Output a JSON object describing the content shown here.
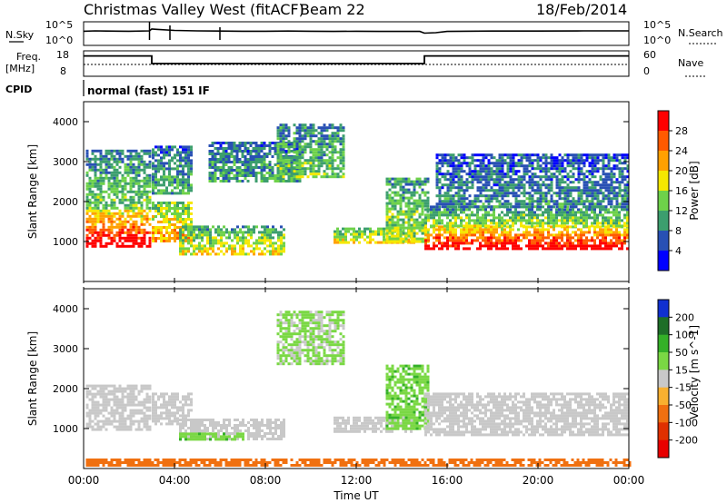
{
  "header": {
    "station": "Christmas Valley West (fitACF)",
    "beam": "Beam 22",
    "date": "18/Feb/2014"
  },
  "noise_panel": {
    "left_label": "N.Sky",
    "left_ticks": [
      "10^5",
      "10^0"
    ],
    "right_label": "N.Search",
    "right_ticks": [
      "10^5",
      "10^0"
    ]
  },
  "freq_panel": {
    "left_label_1": "Freq.",
    "left_label_2": "[MHz]",
    "left_ticks": [
      "18",
      "8"
    ],
    "right_label": "Nave",
    "right_ticks": [
      "60",
      "0"
    ]
  },
  "cpid": {
    "label": "CPID",
    "text": "normal (fast) 151 IF"
  },
  "power_panel": {
    "ylabel": "Slant Range [km]"
  },
  "velocity_panel": {
    "ylabel": "Slant Range [km]"
  },
  "power_scale": {
    "label": "Power [dB]",
    "ticks": [
      "28",
      "24",
      "20",
      "16",
      "12",
      "8",
      "4"
    ],
    "colors": [
      "#ff0000",
      "#ff5a00",
      "#ffa000",
      "#f5e800",
      "#6ed24a",
      "#3c9e6e",
      "#2850b4",
      "#0000ff"
    ]
  },
  "velocity_scale": {
    "label": "Velocity [m s^-1]",
    "ticks": [
      "200",
      "100",
      "50",
      "15",
      "-15",
      "-50",
      "-100",
      "-200"
    ],
    "colors": [
      "#1030d0",
      "#1e6e28",
      "#34b028",
      "#7ad844",
      "#c8c8c8",
      "#f8b030",
      "#f07010",
      "#e03000",
      "#e80000"
    ]
  },
  "x_axis": {
    "label": "Time UT",
    "ticks": [
      "00:00",
      "04:00",
      "08:00",
      "12:00",
      "16:00",
      "20:00",
      "00:00"
    ]
  },
  "chart_data": [
    {
      "type": "line",
      "panel": "noise",
      "x_unit": "hours UT",
      "y_scale": "log",
      "ylim": [
        1,
        100000
      ],
      "series": [
        {
          "x": [
            0,
            0.5,
            1,
            2,
            2.9,
            3,
            3.2,
            4,
            5,
            6,
            7,
            8,
            9,
            10,
            11,
            12,
            13,
            14,
            14.8,
            15,
            15.5,
            16,
            18,
            20,
            22,
            24
          ],
          "y": [
            1000,
            1200,
            1100,
            1000,
            1200,
            3000,
            2500,
            1500,
            1200,
            1100,
            1000,
            1000,
            1100,
            1000,
            900,
            1000,
            900,
            900,
            900,
            400,
            500,
            900,
            1100,
            1100,
            1200,
            1200
          ]
        }
      ]
    },
    {
      "type": "line",
      "panel": "frequency",
      "ylim": [
        8,
        18
      ],
      "series": [
        {
          "x": [
            0,
            3,
            3,
            15,
            15,
            24
          ],
          "y": [
            16,
            16,
            13,
            13,
            16,
            16
          ]
        },
        {
          "x": [
            0,
            24
          ],
          "y": [
            13,
            13
          ]
        }
      ]
    },
    {
      "type": "heatmap",
      "panel": "power",
      "xlim": [
        0,
        24
      ],
      "ylim": [
        0,
        4500
      ],
      "yticks": [
        1000,
        2000,
        3000,
        4000
      ],
      "regions": [
        {
          "t0": 0.1,
          "t1": 2.9,
          "r0": 900,
          "r1": 1800,
          "power": 26
        },
        {
          "t0": 0.1,
          "t1": 2.9,
          "r0": 1800,
          "r1": 3300,
          "power": 10
        },
        {
          "t0": 3.0,
          "t1": 4.8,
          "r0": 1000,
          "r1": 2000,
          "power": 18
        },
        {
          "t0": 3.0,
          "t1": 4.8,
          "r0": 2200,
          "r1": 3400,
          "power": 8
        },
        {
          "t0": 4.2,
          "t1": 8.8,
          "r0": 700,
          "r1": 1400,
          "power": 14
        },
        {
          "t0": 5.5,
          "t1": 9.5,
          "r0": 2500,
          "r1": 3500,
          "power": 8
        },
        {
          "t0": 8.5,
          "t1": 11.5,
          "r0": 2600,
          "r1": 3950,
          "power": 10
        },
        {
          "t0": 11.0,
          "t1": 14.5,
          "r0": 950,
          "r1": 1350,
          "power": 16
        },
        {
          "t0": 13.3,
          "t1": 15.2,
          "r0": 1000,
          "r1": 2600,
          "power": 12
        },
        {
          "t0": 15.0,
          "t1": 24.0,
          "r0": 850,
          "r1": 1400,
          "power": 26
        },
        {
          "t0": 15.0,
          "t1": 24.0,
          "r0": 1400,
          "r1": 1900,
          "power": 12
        },
        {
          "t0": 15.5,
          "t1": 24.0,
          "r0": 1900,
          "r1": 3200,
          "power": 6
        }
      ]
    },
    {
      "type": "heatmap",
      "panel": "velocity",
      "xlim": [
        0,
        24
      ],
      "ylim": [
        0,
        4500
      ],
      "yticks": [
        1000,
        2000,
        3000,
        4000
      ],
      "regions": [
        {
          "t0": 0.1,
          "t1": 2.9,
          "r0": 1000,
          "r1": 2100,
          "velocity": 0
        },
        {
          "t0": 3.0,
          "t1": 4.8,
          "r0": 1100,
          "r1": 1900,
          "velocity": 0
        },
        {
          "t0": 4.2,
          "t1": 8.8,
          "r0": 750,
          "r1": 1250,
          "velocity": 0
        },
        {
          "t0": 4.2,
          "t1": 7.0,
          "r0": 700,
          "r1": 900,
          "velocity": 40
        },
        {
          "t0": 11.0,
          "t1": 14.5,
          "r0": 950,
          "r1": 1300,
          "velocity": 0
        },
        {
          "t0": 13.3,
          "t1": 15.2,
          "r0": 1000,
          "r1": 2600,
          "velocity": 40
        },
        {
          "t0": 15.0,
          "t1": 24.0,
          "r0": 850,
          "r1": 1900,
          "velocity": 0
        },
        {
          "t0": 8.5,
          "t1": 11.5,
          "r0": 2600,
          "r1": 3950,
          "velocity": 20
        },
        {
          "t0": 0.1,
          "t1": 24.0,
          "r0": 50,
          "r1": 250,
          "velocity": -80
        }
      ]
    }
  ]
}
